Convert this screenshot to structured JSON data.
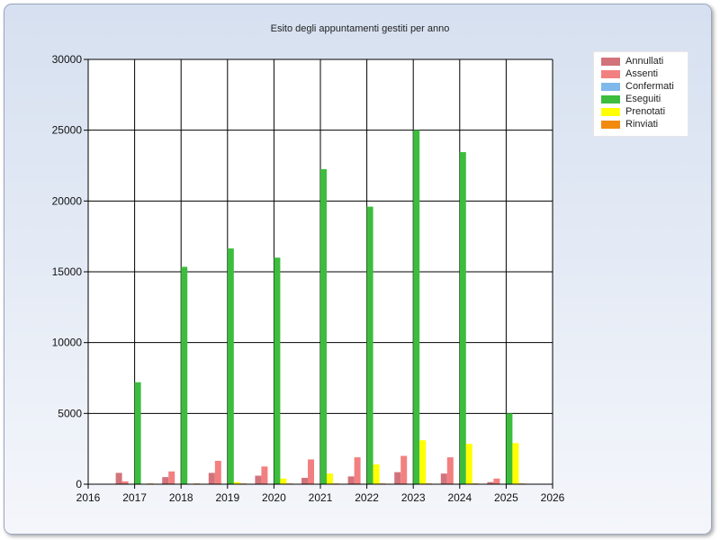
{
  "chart_data": {
    "type": "bar",
    "title": "Esito degli appuntamenti gestiti per anno",
    "xlabel": "",
    "ylabel": "",
    "xlim": [
      2016,
      2026
    ],
    "ylim": [
      0,
      30000
    ],
    "x_ticks": [
      "2016",
      "2017",
      "2018",
      "2019",
      "2020",
      "2021",
      "2022",
      "2023",
      "2024",
      "2025",
      "2026"
    ],
    "y_ticks": [
      "0",
      "5000",
      "10000",
      "15000",
      "20000",
      "25000",
      "30000"
    ],
    "grid": true,
    "legend_position": "top-right",
    "categories": [
      2017,
      2018,
      2019,
      2020,
      2021,
      2022,
      2023,
      2024,
      2025
    ],
    "series": [
      {
        "name": "Annullati",
        "color": "#d2737b",
        "values": [
          800,
          500,
          800,
          600,
          450,
          550,
          850,
          750,
          150
        ]
      },
      {
        "name": "Assenti",
        "color": "#f28080",
        "values": [
          200,
          900,
          1650,
          1250,
          1750,
          1900,
          2000,
          1900,
          400
        ]
      },
      {
        "name": "Confermati",
        "color": "#7fb8ea",
        "values": [
          0,
          0,
          0,
          0,
          0,
          0,
          0,
          0,
          0
        ]
      },
      {
        "name": "Eseguiti",
        "color": "#3dbd3d",
        "values": [
          7200,
          15350,
          16650,
          16000,
          22250,
          19600,
          25000,
          23450,
          5000
        ]
      },
      {
        "name": "Prenotati",
        "color": "#ffff00",
        "values": [
          0,
          0,
          150,
          400,
          750,
          1400,
          3100,
          2850,
          2900
        ]
      },
      {
        "name": "Rinviati",
        "color": "#f28a10",
        "values": [
          50,
          50,
          50,
          50,
          50,
          50,
          50,
          50,
          50
        ]
      }
    ]
  }
}
